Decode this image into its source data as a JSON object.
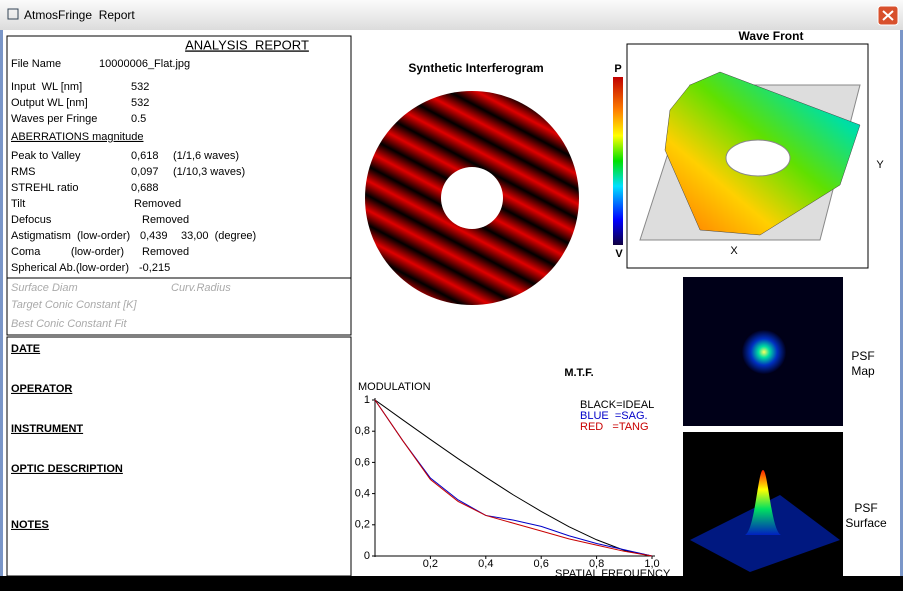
{
  "window": {
    "title": "AtmosFringe  Report"
  },
  "report": {
    "title": "ANALYSIS  REPORT",
    "rows": [
      [
        "File Name",
        "10000006_Flat.jpg"
      ],
      [
        "Input  WL [nm]",
        "532"
      ],
      [
        "Output WL [nm]",
        "532"
      ],
      [
        "Waves per Fringe",
        "0.5"
      ]
    ],
    "aberrations_heading": "ABERRATIONS magnitude",
    "aberrations": [
      [
        "Peak to Valley",
        "0,618",
        "(1/1,6 waves)"
      ],
      [
        "RMS",
        "0,097",
        "(1/10,3 waves)"
      ],
      [
        "STREHL ratio",
        "0,688"
      ],
      [
        "Tilt",
        "Removed"
      ],
      [
        "Defocus",
        "Removed"
      ],
      [
        "Astigmatism  (low-order)",
        "0,439",
        "33,00  (degree)"
      ],
      [
        "Coma          (low-order)",
        "Removed"
      ],
      [
        "Spherical Ab.(low-order)",
        "-0,215"
      ]
    ],
    "surface": [
      "Surface Diam",
      "Curv.Radius",
      "Target Conic Constant [K]",
      "Best Conic Constant Fit"
    ],
    "sections": [
      "DATE",
      "OPERATOR",
      "INSTRUMENT",
      "OPTIC DESCRIPTION",
      "NOTES"
    ]
  },
  "interferogram": {
    "title": "Synthetic Interferogram",
    "scale_top": "P",
    "scale_bottom": "V"
  },
  "wavefront": {
    "title": "Wave Front",
    "x_axis": "X",
    "y_axis": "Y"
  },
  "psf_map": [
    "PSF",
    "Map"
  ],
  "psf_surface": [
    "PSF",
    "Surface"
  ],
  "chart_data": {
    "type": "line",
    "title": "M.T.F.",
    "y_label": "MODULATION",
    "x_label": "SPATIAL FREQUENCY",
    "x": [
      0,
      0.1,
      0.2,
      0.3,
      0.4,
      0.5,
      0.6,
      0.7,
      0.8,
      0.9,
      1.0
    ],
    "series": [
      {
        "name": "BLACK=IDEAL",
        "color": "#000000",
        "values": [
          1,
          0.873,
          0.747,
          0.624,
          0.505,
          0.391,
          0.286,
          0.188,
          0.104,
          0.036,
          0
        ]
      },
      {
        "name": "BLUE  =SAG.",
        "color": "#0000c8",
        "values": [
          1,
          0.74,
          0.5,
          0.36,
          0.26,
          0.23,
          0.19,
          0.13,
          0.08,
          0.04,
          0
        ]
      },
      {
        "name": "RED   =TANG",
        "color": "#c80000",
        "values": [
          1,
          0.74,
          0.49,
          0.35,
          0.26,
          0.21,
          0.16,
          0.11,
          0.07,
          0.03,
          0
        ]
      }
    ],
    "xlim": [
      0,
      1
    ],
    "ylim": [
      0,
      1
    ],
    "xticks": [
      {
        "value": 0.2,
        "label": "0,2"
      },
      {
        "value": 0.4,
        "label": "0,4"
      },
      {
        "value": 0.6,
        "label": "0,6"
      },
      {
        "value": 0.8,
        "label": "0,8"
      },
      {
        "value": 1.0,
        "label": "1,0"
      }
    ],
    "yticks": [
      0,
      {
        "value": 0.2,
        "label": "0,2"
      },
      {
        "value": 0.4,
        "label": "0,4"
      },
      {
        "value": 0.6,
        "label": "0,6"
      },
      {
        "value": 0.8,
        "label": "0,8"
      },
      1
    ]
  }
}
